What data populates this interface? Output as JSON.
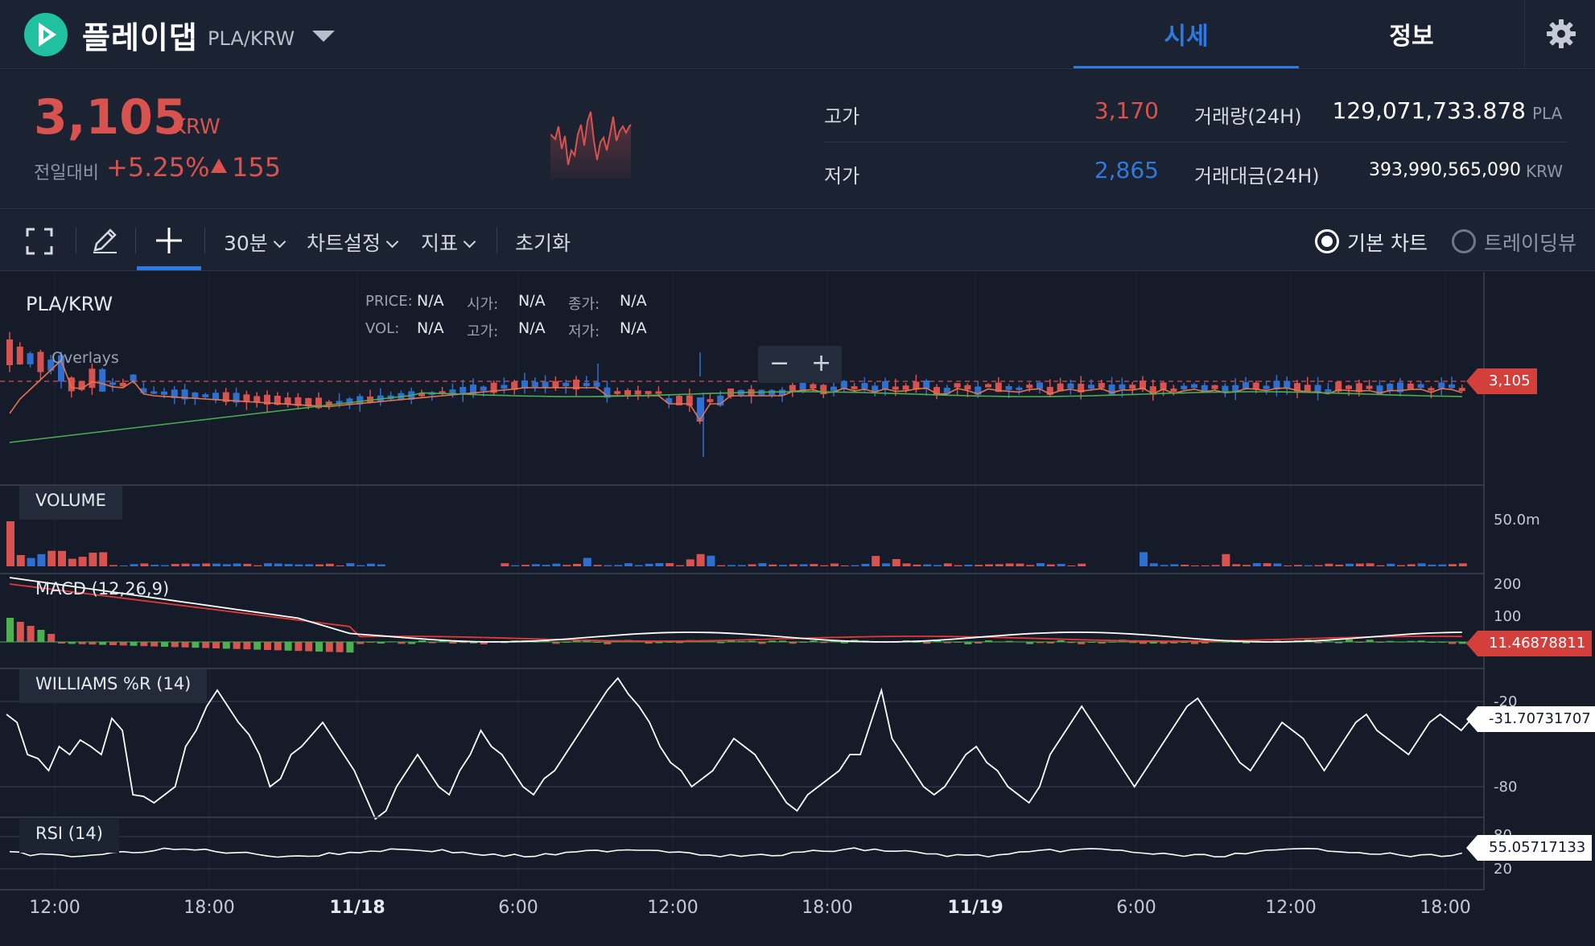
{
  "header": {
    "coin_name": "플레이댑",
    "pair": "PLA/KRW",
    "tabs": [
      {
        "label": "시세",
        "active": true
      },
      {
        "label": "정보",
        "active": false
      }
    ]
  },
  "price": {
    "value": "3,105",
    "unit": "KRW",
    "change_label": "전일대비",
    "change_pct": "+5.25%",
    "change_val": "155",
    "high_label": "고가",
    "high": "3,170",
    "low_label": "저가",
    "low": "2,865",
    "volume_label": "거래량(24H)",
    "volume": "129,071,733.878",
    "volume_unit": "PLA",
    "turnover_label": "거래대금(24H)",
    "turnover": "393,990,565,090",
    "turnover_unit": "KRW"
  },
  "toolbar": {
    "interval": "30분",
    "chart_settings": "차트설정",
    "indicators": "지표",
    "reset": "초기화",
    "chart_modes": [
      {
        "label": "기본 차트",
        "selected": true
      },
      {
        "label": "트레이딩뷰",
        "selected": false
      }
    ]
  },
  "chart": {
    "title": "PLA/KRW",
    "ohlc": [
      {
        "label": "PRICE:",
        "value": "N/A"
      },
      {
        "label": "시가:",
        "value": "N/A"
      },
      {
        "label": "종가:",
        "value": "N/A"
      },
      {
        "label": "VOL:",
        "value": "N/A"
      },
      {
        "label": "고가:",
        "value": "N/A"
      },
      {
        "label": "저가:",
        "value": "N/A"
      }
    ],
    "overlays_label": "Overlays",
    "zoom_out": "−",
    "zoom_in": "+",
    "price_tag": "3,105",
    "volume_label": "VOLUME",
    "volume_axis": "50.0m",
    "macd_label": "MACD (12,26,9)",
    "macd_axis": [
      "200",
      "100"
    ],
    "macd_tag": "11.46878811",
    "williams_label": "WILLIAMS %R (14)",
    "williams_axis": [
      "-20",
      "-80"
    ],
    "williams_tag": "-31.70731707",
    "rsi_label": "RSI (14)",
    "rsi_axis": [
      "80",
      "20"
    ],
    "rsi_tag": "55.05717133",
    "x_ticks": [
      "12:00",
      "18:00",
      "11/18",
      "6:00",
      "12:00",
      "18:00",
      "11/19",
      "6:00",
      "12:00",
      "18:00"
    ],
    "colors": {
      "up": "#d8534f",
      "down": "#2f6fd0",
      "ma_short": "#e5734f",
      "ma_long": "#4caf50",
      "macd_signal": "#e53935",
      "line": "#ffffff"
    }
  }
}
